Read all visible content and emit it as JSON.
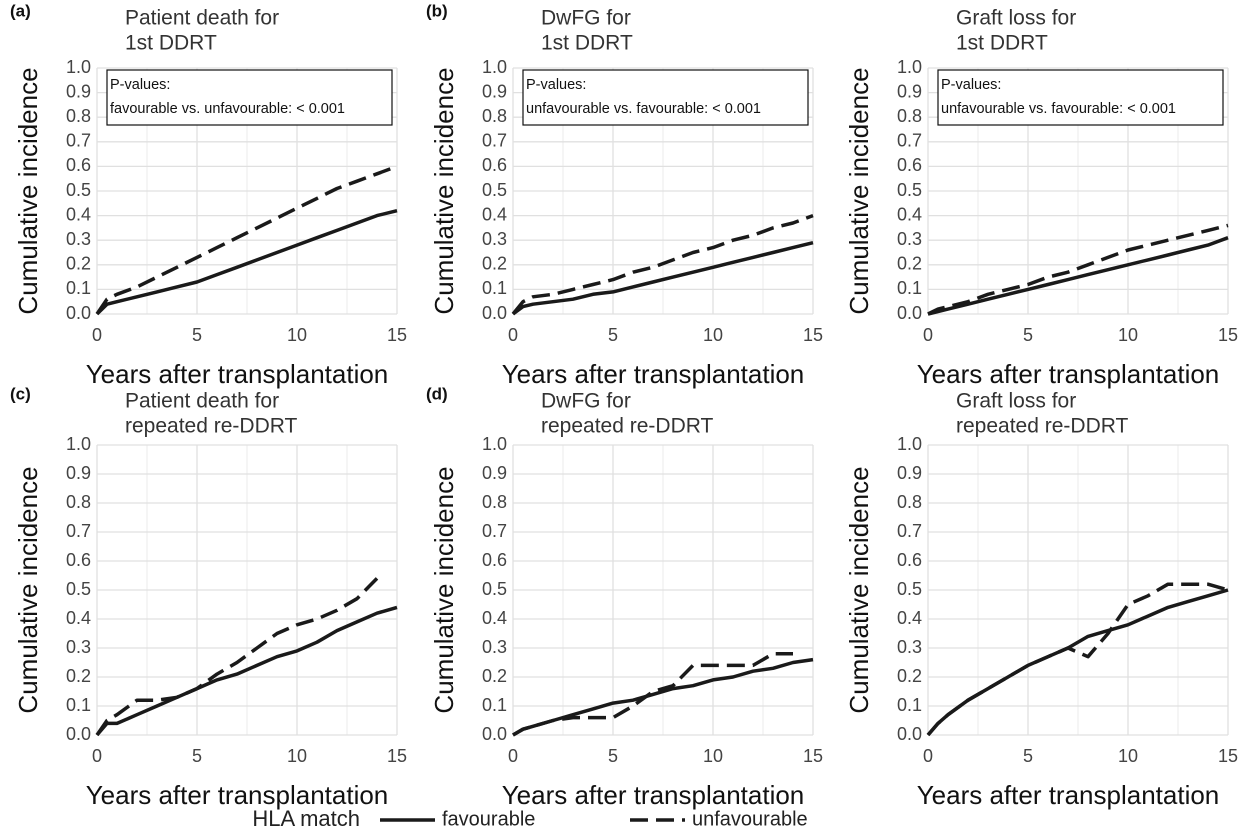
{
  "chart_data": [
    {
      "type": "line",
      "panel": "(a)",
      "title": [
        "Patient death for",
        "1st DDRT"
      ],
      "annotation": [
        "P-values:",
        "favourable vs. unfavourable: < 0.001"
      ],
      "xlabel": "Years after transplantation",
      "ylabel": "Cumulative incidence",
      "x": [
        0,
        0.5,
        1,
        2,
        3,
        4,
        5,
        6,
        7,
        8,
        9,
        10,
        11,
        12,
        13,
        14,
        15
      ],
      "series": [
        {
          "name": "favourable",
          "color": "#1a1a1a",
          "dash": "solid",
          "values": [
            0,
            0.04,
            0.05,
            0.07,
            0.09,
            0.11,
            0.13,
            0.16,
            0.19,
            0.22,
            0.25,
            0.28,
            0.31,
            0.34,
            0.37,
            0.4,
            0.42
          ]
        },
        {
          "name": "unfavourable",
          "color": "#1a1a1a",
          "dash": "dashed",
          "values": [
            0,
            0.06,
            0.08,
            0.11,
            0.15,
            0.19,
            0.23,
            0.27,
            0.31,
            0.35,
            0.39,
            0.43,
            0.47,
            0.51,
            0.54,
            0.57,
            0.6
          ]
        }
      ],
      "xlim": [
        0,
        15
      ],
      "xticks": [
        0,
        5,
        10,
        15
      ],
      "ylim": [
        0,
        1
      ],
      "yticks": [
        {
          "value": 0,
          "label": "0.0"
        },
        0.1,
        0.2,
        0.3,
        0.4,
        0.5,
        0.6,
        0.7,
        0.8,
        0.9,
        {
          "value": 1,
          "label": "1.0"
        }
      ],
      "grid": true
    },
    {
      "type": "line",
      "panel": "(b)",
      "title": [
        "DwFG for",
        "1st DDRT"
      ],
      "annotation": [
        "P-values:",
        "unfavourable vs. favourable: < 0.001"
      ],
      "xlabel": "Years after transplantation",
      "ylabel": "Cumulative incidence",
      "x": [
        0,
        0.5,
        1,
        2,
        3,
        4,
        5,
        6,
        7,
        8,
        9,
        10,
        11,
        12,
        13,
        14,
        15
      ],
      "series": [
        {
          "name": "favourable",
          "color": "#1a1a1a",
          "dash": "solid",
          "values": [
            0,
            0.03,
            0.04,
            0.05,
            0.06,
            0.08,
            0.09,
            0.11,
            0.13,
            0.15,
            0.17,
            0.19,
            0.21,
            0.23,
            0.25,
            0.27,
            0.29
          ]
        },
        {
          "name": "unfavourable",
          "color": "#1a1a1a",
          "dash": "dashed",
          "values": [
            0,
            0.05,
            0.07,
            0.08,
            0.1,
            0.12,
            0.14,
            0.17,
            0.19,
            0.22,
            0.25,
            0.27,
            0.3,
            0.32,
            0.35,
            0.37,
            0.4
          ]
        }
      ],
      "xlim": [
        0,
        15
      ],
      "xticks": [
        0,
        5,
        10,
        15
      ],
      "ylim": [
        0,
        1
      ],
      "yticks": [
        {
          "value": 0,
          "label": "0.0"
        },
        0.1,
        0.2,
        0.3,
        0.4,
        0.5,
        0.6,
        0.7,
        0.8,
        0.9,
        {
          "value": 1,
          "label": "1.0"
        }
      ],
      "grid": true
    },
    {
      "type": "line",
      "title": [
        "Graft loss for",
        "1st DDRT"
      ],
      "annotation": [
        "P-values:",
        "unfavourable vs. favourable: < 0.001"
      ],
      "xlabel": "Years after transplantation",
      "ylabel": "Cumulative incidence",
      "x": [
        0,
        0.5,
        1,
        2,
        3,
        4,
        5,
        6,
        7,
        8,
        9,
        10,
        11,
        12,
        13,
        14,
        15
      ],
      "series": [
        {
          "name": "favourable",
          "color": "#1a1a1a",
          "dash": "solid",
          "values": [
            0,
            0.01,
            0.02,
            0.04,
            0.06,
            0.08,
            0.1,
            0.12,
            0.14,
            0.16,
            0.18,
            0.2,
            0.22,
            0.24,
            0.26,
            0.28,
            0.31
          ]
        },
        {
          "name": "unfavourable",
          "color": "#1a1a1a",
          "dash": "dashed",
          "values": [
            0,
            0.02,
            0.03,
            0.05,
            0.08,
            0.1,
            0.12,
            0.15,
            0.17,
            0.2,
            0.23,
            0.26,
            0.28,
            0.3,
            0.32,
            0.34,
            0.36
          ]
        }
      ],
      "xlim": [
        0,
        15
      ],
      "xticks": [
        0,
        5,
        10,
        15
      ],
      "ylim": [
        0,
        1
      ],
      "yticks": [
        {
          "value": 0,
          "label": "0.0"
        },
        0.1,
        0.2,
        0.3,
        0.4,
        0.5,
        0.6,
        0.7,
        0.8,
        0.9,
        {
          "value": 1,
          "label": "1.0"
        }
      ],
      "grid": true
    },
    {
      "type": "line",
      "panel": "(c)",
      "title": [
        "Patient death for",
        "repeated re-DDRT"
      ],
      "xlabel": "Years after transplantation",
      "ylabel": "Cumulative incidence",
      "x": [
        0,
        0.5,
        1,
        2,
        3,
        4,
        5,
        6,
        7,
        8,
        9,
        10,
        11,
        12,
        13,
        14,
        15
      ],
      "series": [
        {
          "name": "favourable",
          "color": "#1a1a1a",
          "dash": "solid",
          "values": [
            0,
            0.04,
            0.04,
            0.07,
            0.1,
            0.13,
            0.16,
            0.19,
            0.21,
            0.24,
            0.27,
            0.29,
            0.32,
            0.36,
            0.39,
            0.42,
            0.44
          ]
        },
        {
          "name": "unfavourable",
          "color": "#1a1a1a",
          "dash": "dashed",
          "values": [
            0,
            0.05,
            0.07,
            0.12,
            0.12,
            0.13,
            0.16,
            0.21,
            0.25,
            0.3,
            0.35,
            0.38,
            0.4,
            0.43,
            0.47,
            0.54,
            null
          ]
        }
      ],
      "xlim": [
        0,
        15
      ],
      "xticks": [
        0,
        5,
        10,
        15
      ],
      "ylim": [
        0,
        1
      ],
      "yticks": [
        {
          "value": 0,
          "label": "0.0"
        },
        0.1,
        0.2,
        0.3,
        0.4,
        0.5,
        0.6,
        0.7,
        0.8,
        0.9,
        {
          "value": 1,
          "label": "1.0"
        }
      ],
      "grid": true
    },
    {
      "type": "line",
      "panel": "(d)",
      "title": [
        "DwFG for",
        "repeated re-DDRT"
      ],
      "xlabel": "Years after transplantation",
      "ylabel": "Cumulative incidence",
      "x": [
        0,
        0.5,
        1,
        2,
        3,
        4,
        5,
        6,
        7,
        8,
        9,
        10,
        11,
        12,
        13,
        14,
        15
      ],
      "series": [
        {
          "name": "favourable",
          "color": "#1a1a1a",
          "dash": "solid",
          "values": [
            0,
            0.02,
            0.03,
            0.05,
            0.07,
            0.09,
            0.11,
            0.12,
            0.14,
            0.16,
            0.17,
            0.19,
            0.2,
            0.22,
            0.23,
            0.25,
            0.26
          ]
        },
        {
          "name": "unfavourable",
          "color": "#1a1a1a",
          "dash": "dashed",
          "values": [
            0,
            0.02,
            0.03,
            0.05,
            0.06,
            0.06,
            0.06,
            0.1,
            0.15,
            0.17,
            0.24,
            0.24,
            0.24,
            0.24,
            0.28,
            0.28,
            null
          ]
        }
      ],
      "xlim": [
        0,
        15
      ],
      "xticks": [
        0,
        5,
        10,
        15
      ],
      "ylim": [
        0,
        1
      ],
      "yticks": [
        {
          "value": 0,
          "label": "0.0"
        },
        0.1,
        0.2,
        0.3,
        0.4,
        0.5,
        0.6,
        0.7,
        0.8,
        0.9,
        {
          "value": 1,
          "label": "1.0"
        }
      ],
      "grid": true
    },
    {
      "type": "line",
      "title": [
        "Graft loss for",
        "repeated re-DDRT"
      ],
      "xlabel": "Years after transplantation",
      "ylabel": "Cumulative incidence",
      "x": [
        0,
        0.5,
        1,
        2,
        3,
        4,
        5,
        6,
        7,
        8,
        9,
        10,
        11,
        12,
        13,
        14,
        15
      ],
      "series": [
        {
          "name": "favourable",
          "color": "#1a1a1a",
          "dash": "solid",
          "values": [
            0,
            0.04,
            0.07,
            0.12,
            0.16,
            0.2,
            0.24,
            0.27,
            0.3,
            0.34,
            0.36,
            0.38,
            0.41,
            0.44,
            0.46,
            0.48,
            0.5
          ]
        },
        {
          "name": "unfavourable",
          "color": "#1a1a1a",
          "dash": "dashed",
          "values": [
            0,
            0.04,
            0.07,
            0.12,
            0.16,
            0.2,
            0.24,
            0.27,
            0.3,
            0.27,
            0.35,
            0.45,
            0.48,
            0.52,
            0.52,
            0.52,
            0.5
          ]
        }
      ],
      "xlim": [
        0,
        15
      ],
      "xticks": [
        0,
        5,
        10,
        15
      ],
      "ylim": [
        0,
        1
      ],
      "yticks": [
        {
          "value": 0,
          "label": "0.0"
        },
        0.1,
        0.2,
        0.3,
        0.4,
        0.5,
        0.6,
        0.7,
        0.8,
        0.9,
        {
          "value": 1,
          "label": "1.0"
        }
      ],
      "grid": true
    }
  ],
  "legend_title": "HLA match"
}
